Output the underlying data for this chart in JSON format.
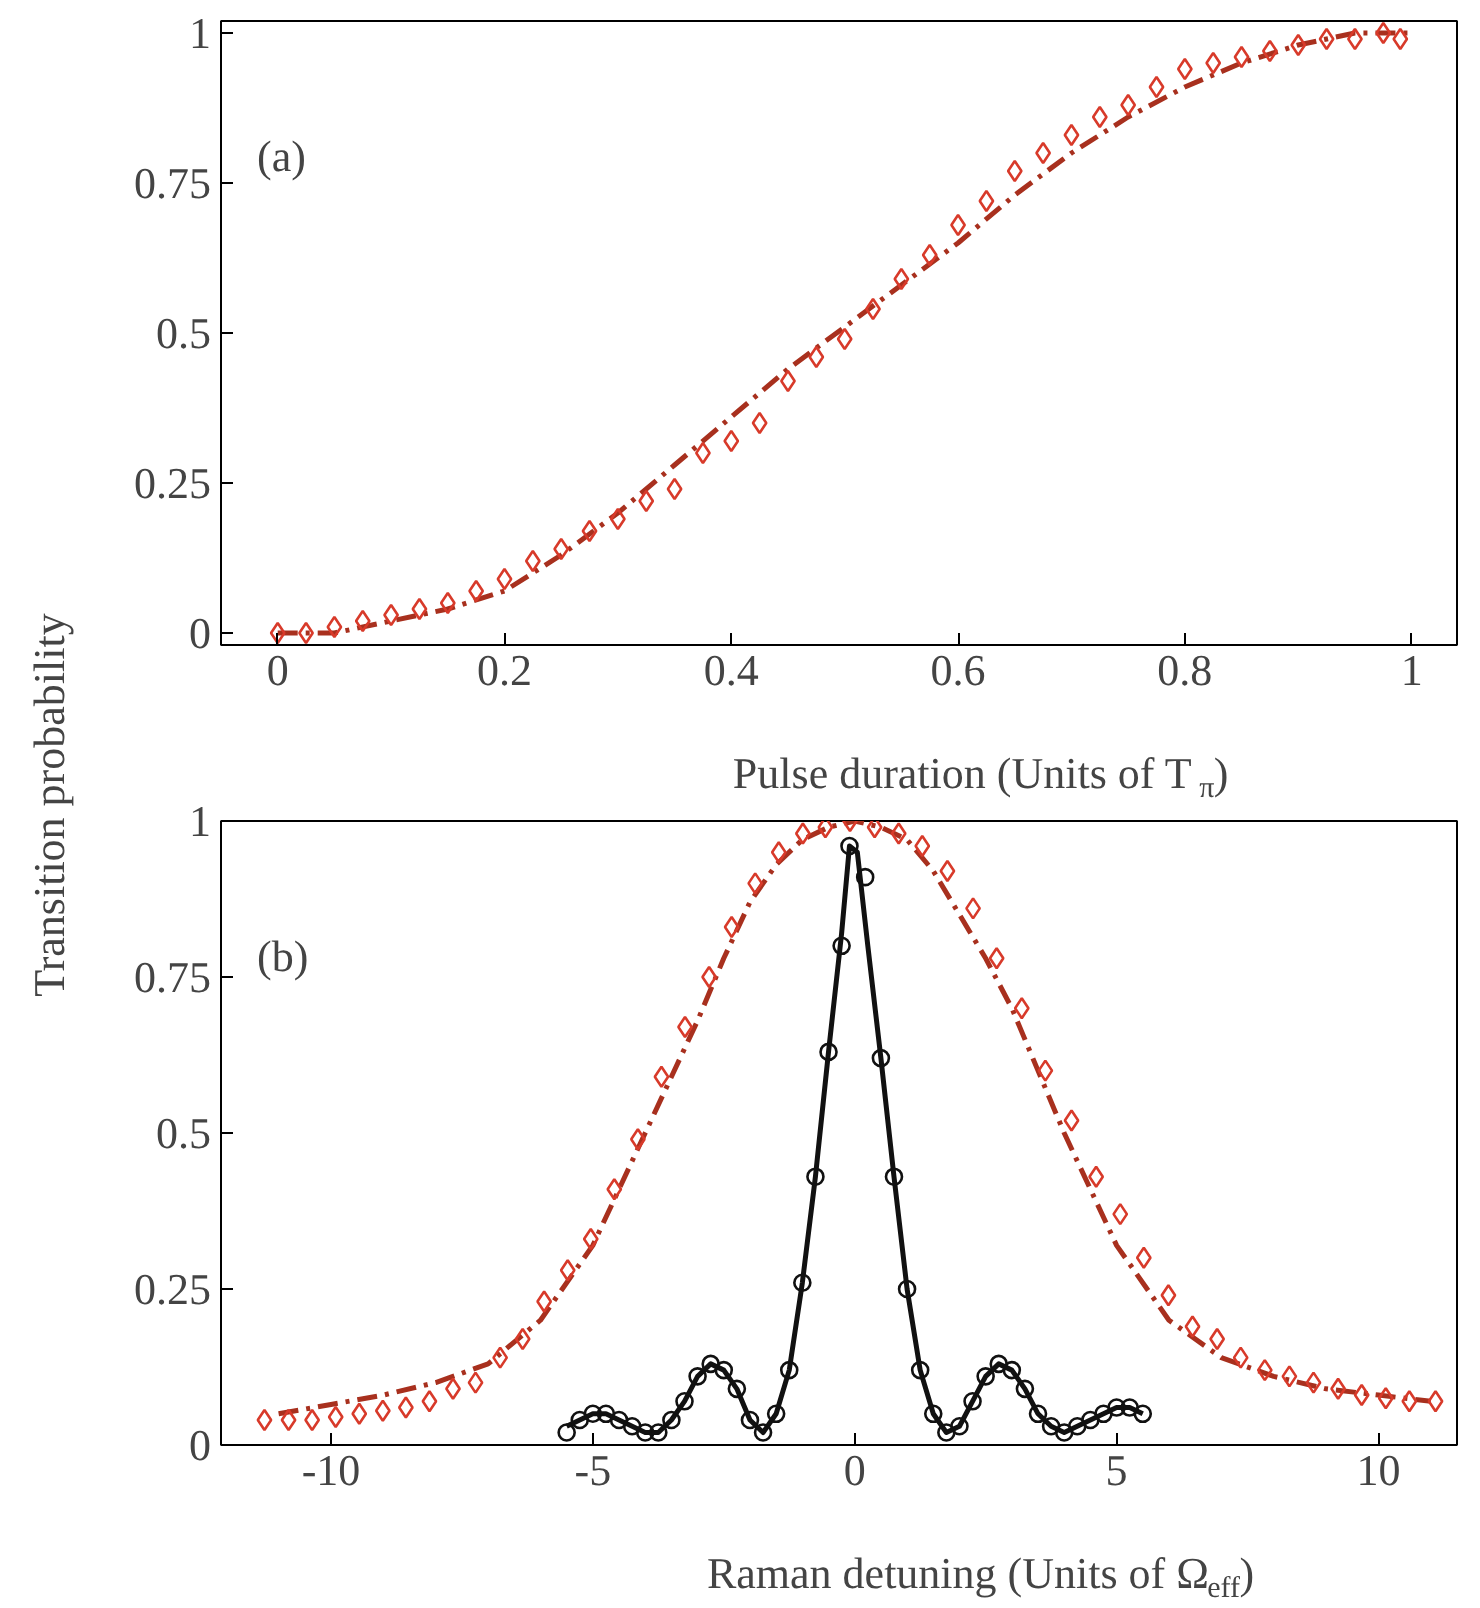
{
  "chart_data": [
    {
      "type": "scatter",
      "ylabel": "Transition probability",
      "xlabel": "Pulse duration (Units of T$_{π}$)",
      "annotations": [
        "(a)"
      ],
      "xlim": [
        -0.05,
        1.04
      ],
      "ylim": [
        -0.02,
        1.02
      ],
      "xticks": [
        0,
        0.2,
        0.4,
        0.6,
        0.8,
        1
      ],
      "yticks": [
        0,
        0.25,
        0.5,
        0.75,
        1
      ],
      "grid": false,
      "series": [
        {
          "type": "line",
          "line_style": "dashed",
          "marker": "none",
          "color": "#a8301e",
          "x": [
            0,
            0.05,
            0.1,
            0.15,
            0.2,
            0.25,
            0.3,
            0.35,
            0.4,
            0.45,
            0.5,
            0.55,
            0.6,
            0.65,
            0.7,
            0.75,
            0.8,
            0.85,
            0.9,
            0.95,
            1.0
          ],
          "values": [
            0,
            0.0,
            0.02,
            0.04,
            0.07,
            0.13,
            0.2,
            0.28,
            0.36,
            0.44,
            0.51,
            0.58,
            0.65,
            0.73,
            0.8,
            0.86,
            0.91,
            0.95,
            0.98,
            1.0,
            1.0
          ]
        },
        {
          "marker": "diamond",
          "color": "#d83a2a",
          "x": [
            0,
            0.025,
            0.05,
            0.075,
            0.1,
            0.125,
            0.15,
            0.175,
            0.2,
            0.225,
            0.25,
            0.275,
            0.3,
            0.325,
            0.35,
            0.375,
            0.4,
            0.425,
            0.45,
            0.475,
            0.5,
            0.525,
            0.55,
            0.575,
            0.6,
            0.625,
            0.65,
            0.675,
            0.7,
            0.725,
            0.75,
            0.775,
            0.8,
            0.825,
            0.85,
            0.875,
            0.9,
            0.925,
            0.95,
            0.975,
            0.99
          ],
          "values": [
            0.0,
            0.0,
            0.01,
            0.02,
            0.03,
            0.04,
            0.05,
            0.07,
            0.09,
            0.12,
            0.14,
            0.17,
            0.19,
            0.22,
            0.24,
            0.3,
            0.32,
            0.35,
            0.42,
            0.46,
            0.49,
            0.54,
            0.59,
            0.63,
            0.68,
            0.72,
            0.77,
            0.8,
            0.83,
            0.86,
            0.88,
            0.91,
            0.94,
            0.95,
            0.96,
            0.97,
            0.98,
            0.99,
            0.99,
            1.0,
            0.99
          ]
        }
      ]
    },
    {
      "type": "scatter",
      "xlabel": "Raman detuning (Units of Ω$_{eff}$)",
      "annotations": [
        "(b)"
      ],
      "xlim": [
        -12.1,
        11.5
      ],
      "ylim": [
        0,
        1.0
      ],
      "xticks": [
        -10,
        -5,
        0,
        5,
        10
      ],
      "yticks": [
        0,
        0.25,
        0.5,
        0.75,
        1
      ],
      "grid": false,
      "series": [
        {
          "type": "line",
          "line_style": "dashed",
          "marker": "none",
          "color": "#a8301e",
          "x": [
            -11,
            -10,
            -9,
            -8,
            -7,
            -6,
            -5,
            -4,
            -3,
            -2.5,
            -2,
            -1.5,
            -1,
            -0.5,
            0,
            0.5,
            1,
            1.5,
            2,
            2.5,
            3,
            3.5,
            4,
            5,
            6,
            7,
            8,
            9,
            10,
            11
          ],
          "values": [
            0.05,
            0.065,
            0.08,
            0.1,
            0.13,
            0.2,
            0.32,
            0.5,
            0.68,
            0.78,
            0.87,
            0.93,
            0.97,
            0.99,
            1.0,
            0.99,
            0.97,
            0.92,
            0.85,
            0.78,
            0.7,
            0.6,
            0.5,
            0.32,
            0.2,
            0.14,
            0.11,
            0.09,
            0.08,
            0.07
          ]
        },
        {
          "marker": "diamond",
          "color": "#d83a2a",
          "x": [
            -11.27,
            -10.81,
            -10.36,
            -9.91,
            -9.46,
            -9.01,
            -8.57,
            -8.12,
            -7.67,
            -7.24,
            -6.77,
            -6.34,
            -5.93,
            -5.48,
            -5.04,
            -4.59,
            -4.14,
            -3.69,
            -3.24,
            -2.78,
            -2.35,
            -1.9,
            -1.45,
            -0.99,
            -0.56,
            -0.09,
            0.38,
            0.84,
            1.29,
            1.77,
            2.26,
            2.71,
            3.19,
            3.64,
            4.14,
            4.61,
            5.07,
            5.52,
            5.99,
            6.45,
            6.92,
            7.37,
            7.83,
            8.3,
            8.76,
            9.23,
            9.68,
            10.14,
            10.59,
            11.09
          ],
          "values": [
            0.04,
            0.04,
            0.04,
            0.045,
            0.05,
            0.055,
            0.06,
            0.07,
            0.09,
            0.1,
            0.14,
            0.17,
            0.23,
            0.28,
            0.33,
            0.41,
            0.49,
            0.59,
            0.67,
            0.75,
            0.83,
            0.9,
            0.95,
            0.98,
            0.99,
            1.0,
            0.99,
            0.98,
            0.96,
            0.92,
            0.86,
            0.78,
            0.7,
            0.6,
            0.52,
            0.43,
            0.37,
            0.3,
            0.24,
            0.19,
            0.17,
            0.14,
            0.12,
            0.11,
            0.1,
            0.09,
            0.08,
            0.075,
            0.07,
            0.07
          ]
        },
        {
          "type": "line",
          "line_style": "solid",
          "marker": "none",
          "color": "#111111",
          "x": [
            -5.5,
            -5.25,
            -5,
            -4.75,
            -4.5,
            -4.25,
            -4,
            -3.75,
            -3.5,
            -3.25,
            -3,
            -2.75,
            -2.5,
            -2.25,
            -2,
            -1.75,
            -1.5,
            -1.25,
            -1,
            -0.75,
            -0.5,
            -0.25,
            -0.1,
            0.05,
            0.25,
            0.5,
            0.75,
            1,
            1.25,
            1.5,
            1.75,
            2,
            2.25,
            2.5,
            2.75,
            3,
            3.25,
            3.5,
            3.75,
            4,
            4.25,
            4.5,
            4.75,
            5,
            5.25,
            5.5
          ],
          "values": [
            0.03,
            0.04,
            0.05,
            0.05,
            0.04,
            0.03,
            0.02,
            0.02,
            0.04,
            0.07,
            0.11,
            0.13,
            0.12,
            0.09,
            0.04,
            0.02,
            0.05,
            0.12,
            0.26,
            0.43,
            0.63,
            0.82,
            0.96,
            0.95,
            0.8,
            0.62,
            0.43,
            0.25,
            0.12,
            0.05,
            0.02,
            0.03,
            0.07,
            0.11,
            0.13,
            0.12,
            0.09,
            0.05,
            0.03,
            0.02,
            0.03,
            0.04,
            0.05,
            0.06,
            0.06,
            0.05
          ]
        },
        {
          "marker": "circle",
          "color": "#111111",
          "x": [
            -5.5,
            -5.25,
            -5,
            -4.75,
            -4.5,
            -4.25,
            -4,
            -3.75,
            -3.5,
            -3.25,
            -3,
            -2.75,
            -2.5,
            -2.25,
            -2,
            -1.75,
            -1.5,
            -1.25,
            -1,
            -0.75,
            -0.5,
            -0.25,
            -0.1,
            0.2,
            0.5,
            0.75,
            1,
            1.25,
            1.5,
            1.75,
            2,
            2.25,
            2.5,
            2.75,
            3,
            3.25,
            3.5,
            3.75,
            4,
            4.25,
            4.5,
            4.75,
            5,
            5.25,
            5.5
          ],
          "values": [
            0.02,
            0.04,
            0.05,
            0.05,
            0.04,
            0.03,
            0.02,
            0.02,
            0.04,
            0.07,
            0.11,
            0.13,
            0.12,
            0.09,
            0.04,
            0.02,
            0.05,
            0.12,
            0.26,
            0.43,
            0.63,
            0.8,
            0.96,
            0.91,
            0.62,
            0.43,
            0.25,
            0.12,
            0.05,
            0.02,
            0.03,
            0.07,
            0.11,
            0.13,
            0.12,
            0.09,
            0.05,
            0.03,
            0.02,
            0.03,
            0.04,
            0.05,
            0.06,
            0.06,
            0.05
          ]
        }
      ]
    }
  ]
}
